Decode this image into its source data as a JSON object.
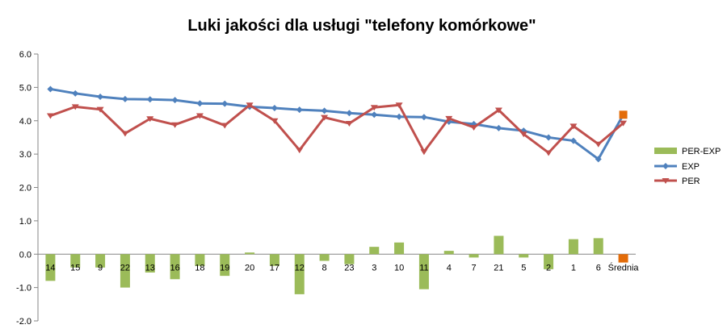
{
  "chart_data": {
    "type": "bar+line",
    "title": "Luki jakości dla usługi \"telefony komórkowe\"",
    "categories": [
      "14",
      "15",
      "9",
      "22",
      "13",
      "16",
      "18",
      "19",
      "20",
      "17",
      "12",
      "8",
      "23",
      "3",
      "10",
      "11",
      "4",
      "7",
      "21",
      "5",
      "2",
      "1",
      "6",
      "Średnia"
    ],
    "y_ticks": [
      "6.0",
      "5.0",
      "4.0",
      "3.0",
      "2.0",
      "1.0",
      "0.0",
      "-1.0",
      "-2.0"
    ],
    "ylim": [
      -2,
      6
    ],
    "grid": false,
    "legend_position": "right",
    "series": [
      {
        "name": "PER-EXP",
        "kind": "bar",
        "color": "#9bbb59",
        "highlight_color": "#e36c09",
        "values": [
          -0.8,
          -0.4,
          -0.4,
          -1.0,
          -0.55,
          -0.75,
          -0.35,
          -0.65,
          0.05,
          -0.35,
          -1.2,
          -0.2,
          -0.3,
          0.22,
          0.35,
          -1.05,
          0.1,
          -0.1,
          0.55,
          -0.1,
          -0.45,
          0.45,
          0.48,
          -0.25
        ]
      },
      {
        "name": "EXP",
        "kind": "line",
        "color": "#4f81bd",
        "marker": "diamond",
        "highlight_color": "#e36c09",
        "values": [
          4.95,
          4.82,
          4.72,
          4.65,
          4.64,
          4.62,
          4.52,
          4.51,
          4.42,
          4.38,
          4.33,
          4.3,
          4.23,
          4.18,
          4.12,
          4.11,
          3.97,
          3.9,
          3.78,
          3.7,
          3.5,
          3.4,
          2.85,
          4.18
        ]
      },
      {
        "name": "PER",
        "kind": "line",
        "color": "#c0504d",
        "marker": "triangle-down",
        "values": [
          4.15,
          4.42,
          4.34,
          3.62,
          4.06,
          3.88,
          4.15,
          3.86,
          4.47,
          4.0,
          3.12,
          4.1,
          3.92,
          4.4,
          4.47,
          3.07,
          4.07,
          3.8,
          4.32,
          3.6,
          3.04,
          3.84,
          3.3,
          3.93
        ]
      }
    ]
  }
}
